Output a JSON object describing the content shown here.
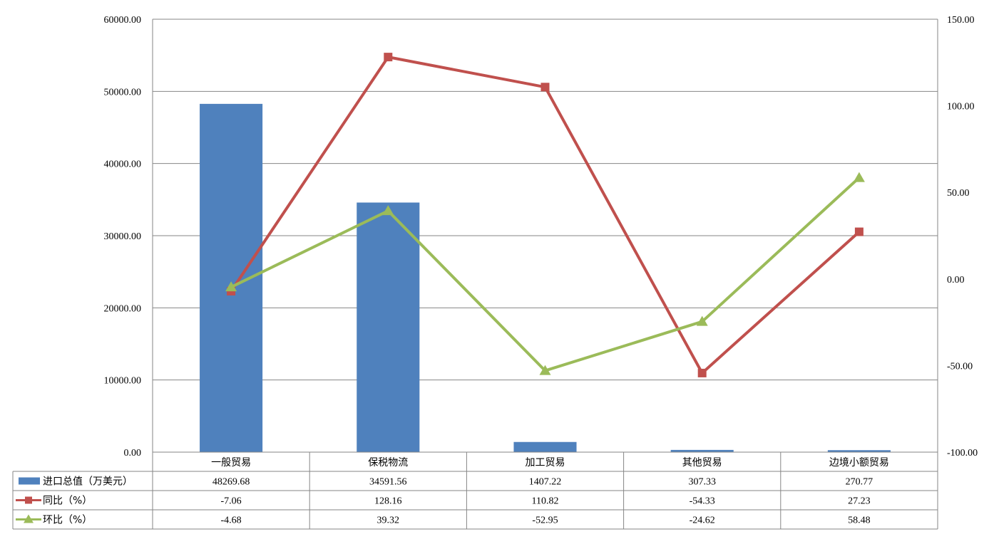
{
  "chart_data": {
    "type": "bar",
    "categories": [
      "一般贸易",
      "保税物流",
      "加工贸易",
      "其他贸易",
      "边境小额贸易"
    ],
    "series": [
      {
        "name": "进口总值（万美元）",
        "kind": "bar",
        "axis": "left",
        "color": "#4f81bd",
        "values": [
          48269.68,
          34591.56,
          1407.22,
          307.33,
          270.77
        ],
        "labels": [
          "48269.68",
          "34591.56",
          "1407.22",
          "307.33",
          "270.77"
        ]
      },
      {
        "name": "同比（%）",
        "kind": "line",
        "axis": "right",
        "color": "#c0504d",
        "marker": "square",
        "values": [
          -7.06,
          128.16,
          110.82,
          -54.33,
          27.23
        ],
        "labels": [
          "-7.06",
          "128.16",
          "110.82",
          "-54.33",
          "27.23"
        ]
      },
      {
        "name": "环比（%）",
        "kind": "line",
        "axis": "right",
        "color": "#9bbb59",
        "marker": "triangle",
        "values": [
          -4.68,
          39.32,
          -52.95,
          -24.62,
          58.48
        ],
        "labels": [
          "-4.68",
          "39.32",
          "-52.95",
          "-24.62",
          "58.48"
        ]
      }
    ],
    "y_left": {
      "ylim": [
        0,
        60000
      ],
      "ticks": [
        "0.00",
        "10000.00",
        "20000.00",
        "30000.00",
        "40000.00",
        "50000.00",
        "60000.00"
      ]
    },
    "y_right": {
      "ylim": [
        -100,
        150
      ],
      "ticks": [
        "-100.00",
        "-50.00",
        "0.00",
        "50.00",
        "100.00",
        "150.00"
      ]
    },
    "grid": true,
    "legend": "data-table-below"
  }
}
